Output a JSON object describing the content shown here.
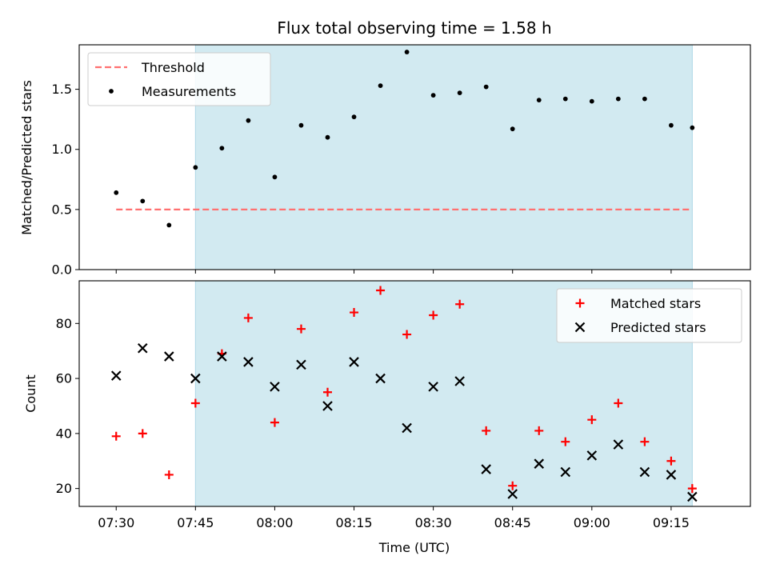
{
  "chart_data": [
    {
      "type": "scatter",
      "title": "Flux total observing time = 1.58 h",
      "xlabel": "",
      "ylabel": "Matched/Predicted stars",
      "ylim": [
        0,
        1.87
      ],
      "yticks": [
        "0.0",
        "0.5",
        "1.0",
        "1.5"
      ],
      "ytick_values": [
        0,
        0.5,
        1.0,
        1.5
      ],
      "shaded_interval": [
        "07:45",
        "09:19"
      ],
      "shade_color": "#add8e6",
      "legend_position": "top-left",
      "threshold": {
        "name": "Threshold",
        "value": 0.5,
        "x_start": "07:30",
        "x_end": "09:19",
        "color": "#ff7070",
        "style": "dashed"
      },
      "series": [
        {
          "name": "Measurements",
          "color": "#000000",
          "marker": "dot",
          "x": [
            "07:30",
            "07:35",
            "07:40",
            "07:45",
            "07:50",
            "07:55",
            "08:00",
            "08:05",
            "08:10",
            "08:15",
            "08:20",
            "08:25",
            "08:30",
            "08:35",
            "08:40",
            "08:45",
            "08:50",
            "08:55",
            "09:00",
            "09:05",
            "09:10",
            "09:15",
            "09:19"
          ],
          "y": [
            0.64,
            0.57,
            0.37,
            0.85,
            1.01,
            1.24,
            0.77,
            1.2,
            1.1,
            1.27,
            1.53,
            1.81,
            1.45,
            1.47,
            1.52,
            1.17,
            1.41,
            1.42,
            1.4,
            1.42,
            1.42,
            1.2,
            1.18
          ]
        }
      ]
    },
    {
      "type": "scatter",
      "title": "",
      "xlabel": "Time (UTC)",
      "ylabel": "Count",
      "ylim": [
        13.5,
        95.5
      ],
      "yticks": [
        "20",
        "40",
        "60",
        "80"
      ],
      "ytick_values": [
        20,
        40,
        60,
        80
      ],
      "xticks": [
        "07:30",
        "07:45",
        "08:00",
        "08:15",
        "08:30",
        "08:45",
        "09:00",
        "09:15"
      ],
      "xlim": [
        "07:23",
        "09:30"
      ],
      "shaded_interval": [
        "07:45",
        "09:19"
      ],
      "shade_color": "#add8e6",
      "legend_position": "top-right",
      "series": [
        {
          "name": "Matched stars",
          "color": "#ff0000",
          "marker": "plus",
          "x": [
            "07:30",
            "07:35",
            "07:40",
            "07:45",
            "07:50",
            "07:55",
            "08:00",
            "08:05",
            "08:10",
            "08:15",
            "08:20",
            "08:25",
            "08:30",
            "08:35",
            "08:40",
            "08:45",
            "08:50",
            "08:55",
            "09:00",
            "09:05",
            "09:10",
            "09:15",
            "09:19"
          ],
          "y": [
            39,
            40,
            25,
            51,
            69,
            82,
            44,
            78,
            55,
            84,
            92,
            76,
            83,
            87,
            41,
            21,
            41,
            37,
            45,
            51,
            37,
            30,
            20
          ]
        },
        {
          "name": "Predicted stars",
          "color": "#000000",
          "marker": "x",
          "x": [
            "07:30",
            "07:35",
            "07:40",
            "07:45",
            "07:50",
            "07:55",
            "08:00",
            "08:05",
            "08:10",
            "08:15",
            "08:20",
            "08:25",
            "08:30",
            "08:35",
            "08:40",
            "08:45",
            "08:50",
            "08:55",
            "09:00",
            "09:05",
            "09:10",
            "09:15",
            "09:19"
          ],
          "y": [
            61,
            71,
            68,
            60,
            68,
            66,
            57,
            65,
            50,
            66,
            60,
            42,
            57,
            59,
            27,
            18,
            29,
            26,
            32,
            36,
            26,
            25,
            17
          ]
        }
      ]
    }
  ]
}
